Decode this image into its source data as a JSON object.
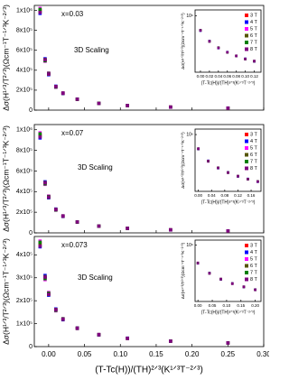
{
  "chart_data": [
    {
      "type": "scatter",
      "annotations": [
        "x=0.03",
        "3D Scaling"
      ],
      "y_label": "Δσ(H¹ᐟ³/T²ᐟ³)(Ωcm⁻¹T⁻¹ᐟ³K⁻²ᐟ³)",
      "x": [
        -0.012,
        -0.005,
        0,
        0.01,
        0.02,
        0.04,
        0.07,
        0.11,
        0.17,
        0.25
      ],
      "series": [
        {
          "color": "#ff0000",
          "values": [
            1000000,
            500000,
            365000,
            234000,
            170000,
            109000,
            68000,
            46000,
            30000,
            20000
          ]
        },
        {
          "color": "#0000ff",
          "values": [
            970000,
            515000,
            355000,
            240000,
            166000,
            111000,
            67000,
            47000,
            29500,
            20500
          ]
        },
        {
          "color": "#ff00ff",
          "values": [
            1020000,
            490000,
            372000,
            229000,
            173000,
            107000,
            69000,
            45500,
            30500,
            19600
          ]
        },
        {
          "color": "#555500",
          "values": [
            990000,
            508000,
            360000,
            237000,
            168000,
            110000,
            67500,
            46500,
            29800,
            20200
          ]
        },
        {
          "color": "#008000",
          "values": [
            1010000,
            495000,
            368000,
            231000,
            171000,
            108000,
            68500,
            45800,
            30200,
            19800
          ]
        },
        {
          "color": "#800080",
          "values": [
            980000,
            505000,
            362000,
            236000,
            169000,
            109500,
            67800,
            46200,
            29900,
            20100
          ]
        }
      ],
      "xlim": [
        -0.02,
        0.3
      ],
      "xticks": [
        0,
        0.05,
        0.1,
        0.15,
        0.2,
        0.25,
        0.3
      ],
      "ylim": [
        0,
        1050000
      ],
      "yticks": [
        0,
        {
          "value": 200000,
          "label": "2x10⁵"
        },
        {
          "value": 400000,
          "label": "4x10⁵"
        },
        {
          "value": 600000,
          "label": "6x10⁵"
        },
        {
          "value": 800000,
          "label": "8x10⁵"
        },
        {
          "value": 1000000,
          "label": "1x10⁶"
        }
      ],
      "inset": {
        "type": "scatter",
        "log_y": true,
        "legend": "upper right",
        "y_label": "Δσ(H¹ᐟ³/T²ᐟ³)(Ωcm⁻¹T⁻¹ᐟ³K⁻²ᐟ³)",
        "x_label": "(T-Tc(H))/(TH)²ᐟ³(K¹ᐟ³T⁻²ᐟ³)",
        "x": [
          0,
          0.02,
          0.04,
          0.06,
          0.08,
          0.1,
          0.12
        ],
        "series": [
          {
            "name": "3 T",
            "color": "#ff0000",
            "values": [
              365000,
              170000,
              109000,
              79400,
              62000,
              50000,
              43000
            ]
          },
          {
            "name": "4 T",
            "color": "#0000ff",
            "values": [
              355000,
              174000,
              106000,
              81000,
              61000,
              51000,
              42000
            ]
          },
          {
            "name": "5 T",
            "color": "#ff00ff",
            "values": [
              372000,
              166000,
              111000,
              78000,
              63000,
              49000,
              43800
            ]
          },
          {
            "name": "6 T",
            "color": "#555500",
            "values": [
              360000,
              172000,
              108000,
              80200,
              61500,
              50500,
              42500
            ]
          },
          {
            "name": "7 T",
            "color": "#008000",
            "values": [
              368000,
              168000,
              110000,
              78800,
              62500,
              49500,
              43400
            ]
          },
          {
            "name": "8 T",
            "color": "#800080",
            "values": [
              362000,
              171000,
              107500,
              79800,
              61800,
              50200,
              42800
            ]
          }
        ],
        "xlim": [
          -0.012,
          0.135
        ],
        "xticks": [
          {
            "value": 0,
            "label": "0.00"
          },
          {
            "value": 0.02,
            "label": "0.02"
          },
          {
            "value": 0.04,
            "label": "0.04"
          },
          {
            "value": 0.06,
            "label": "0.06"
          },
          {
            "value": 0.08,
            "label": "0.08"
          },
          {
            "value": 0.1,
            "label": "0.10"
          },
          {
            "value": 0.12,
            "label": "0.12"
          }
        ],
        "ylim": [
          20000,
          1500000
        ],
        "yticks": [
          {
            "value": 1000000,
            "label": "10⁶"
          }
        ]
      }
    },
    {
      "type": "scatter",
      "annotations": [
        "x=0.07",
        "3D Scaling"
      ],
      "y_label": "Δσ(H¹ᐟ³/T²ᐟ³)(Ωcm⁻¹T⁻¹ᐟ³K⁻²ᐟ³)",
      "x": [
        -0.012,
        -0.005,
        0,
        0.01,
        0.02,
        0.04,
        0.07,
        0.11,
        0.17,
        0.25
      ],
      "series": [
        {
          "color": "#ff0000",
          "values": [
            950000,
            480000,
            350000,
            225000,
            163000,
            105000,
            66000,
            44000,
            29000,
            19000
          ]
        },
        {
          "color": "#0000ff",
          "values": [
            920000,
            495000,
            340000,
            231000,
            159000,
            107000,
            65000,
            45000,
            28500,
            19500
          ]
        },
        {
          "color": "#ff00ff",
          "values": [
            970000,
            470000,
            357000,
            220000,
            166000,
            103000,
            67000,
            43500,
            29500,
            18600
          ]
        },
        {
          "color": "#555500",
          "values": [
            940000,
            488000,
            345000,
            228000,
            161000,
            106000,
            65500,
            44500,
            28800,
            19200
          ]
        },
        {
          "color": "#008000",
          "values": [
            960000,
            475000,
            353000,
            222000,
            164000,
            104000,
            66500,
            43800,
            29200,
            18800
          ]
        },
        {
          "color": "#800080",
          "values": [
            930000,
            485000,
            347000,
            227000,
            162000,
            105500,
            65800,
            44200,
            28900,
            19100
          ]
        }
      ],
      "xlim": [
        -0.02,
        0.3
      ],
      "xticks": [
        0,
        0.05,
        0.1,
        0.15,
        0.2,
        0.25,
        0.3
      ],
      "ylim": [
        0,
        1050000
      ],
      "yticks": [
        0,
        {
          "value": 200000,
          "label": "2x10⁵"
        },
        {
          "value": 400000,
          "label": "4x10⁵"
        },
        {
          "value": 600000,
          "label": "6x10⁵"
        },
        {
          "value": 800000,
          "label": "8x10⁵"
        },
        {
          "value": 1000000,
          "label": "1x10⁶"
        }
      ],
      "inset": {
        "type": "scatter",
        "log_y": true,
        "legend": "upper right",
        "y_label": "Δσ(H¹ᐟ³/T²ᐟ³)(Ωcm⁻¹T⁻¹ᐟ³K⁻²ᐟ³)",
        "x_label": "(T-Tc(H))/(TH)²ᐟ³(K¹ᐟ³T⁻²ᐟ³)",
        "x": [
          0,
          0.03,
          0.06,
          0.09,
          0.12,
          0.15,
          0.18
        ],
        "series": [
          {
            "name": "3 T",
            "color": "#ff0000",
            "values": [
              350000,
              140000,
              85000,
              60000,
              46000,
              37000,
              31000
            ]
          },
          {
            "name": "4 T",
            "color": "#0000ff",
            "values": [
              340000,
              144000,
              83000,
              61500,
              45000,
              37800,
              30400
            ]
          },
          {
            "name": "5 T",
            "color": "#ff00ff",
            "values": [
              358000,
              136000,
              87000,
              58800,
              47000,
              36300,
              31600
            ]
          },
          {
            "name": "6 T",
            "color": "#555500",
            "values": [
              345000,
              142000,
              84000,
              60800,
              45500,
              37400,
              30700
            ]
          },
          {
            "name": "7 T",
            "color": "#008000",
            "values": [
              354000,
              138000,
              86000,
              59300,
              46500,
              36600,
              31300
            ]
          },
          {
            "name": "8 T",
            "color": "#800080",
            "values": [
              348000,
              141000,
              84500,
              60300,
              45800,
              37100,
              30900
            ]
          }
        ],
        "xlim": [
          -0.01,
          0.19
        ],
        "xticks": [
          {
            "value": 0,
            "label": "0.00"
          },
          {
            "value": 0.04,
            "label": "0.04"
          },
          {
            "value": 0.08,
            "label": "0.08"
          },
          {
            "value": 0.12,
            "label": "0.12"
          },
          {
            "value": 0.16,
            "label": "0.16"
          }
        ],
        "ylim": [
          15000,
          1500000
        ],
        "yticks": [
          {
            "value": 1000000,
            "label": "10⁶"
          }
        ]
      }
    },
    {
      "type": "scatter",
      "annotations": [
        "x=0.073",
        "3D Scaling"
      ],
      "y_label": "Δσ(H¹ᐟ³/T²ᐟ³)(Ωcm⁻¹T⁻¹ᐟ³K⁻²ᐟ³)",
      "x_label": "(T-Tc(H))/(TH)²ᐟ³(K¹ᐟ³T⁻²ᐟ³)",
      "x": [
        -0.012,
        -0.005,
        0,
        0.01,
        0.02,
        0.04,
        0.07,
        0.11,
        0.17,
        0.25
      ],
      "series": [
        {
          "color": "#ff0000",
          "values": [
            450000,
            300000,
            230000,
            160000,
            120000,
            80000,
            52000,
            36000,
            24000,
            16000
          ]
        },
        {
          "color": "#0000ff",
          "values": [
            435000,
            310000,
            224000,
            164000,
            117000,
            81500,
            51000,
            36800,
            23600,
            16400
          ]
        },
        {
          "color": "#ff00ff",
          "values": [
            460000,
            292000,
            236000,
            156000,
            122000,
            78800,
            53000,
            35400,
            24400,
            15700
          ]
        },
        {
          "color": "#555500",
          "values": [
            442000,
            305000,
            227000,
            162000,
            118500,
            80800,
            51500,
            36400,
            23800,
            16200
          ]
        },
        {
          "color": "#008000",
          "values": [
            455000,
            296000,
            233000,
            158000,
            121000,
            79300,
            52500,
            35700,
            24200,
            15800
          ]
        },
        {
          "color": "#800080",
          "values": [
            438000,
            303000,
            228000,
            161000,
            119000,
            80300,
            51800,
            36200,
            23900,
            16100
          ]
        }
      ],
      "xlim": [
        -0.02,
        0.3
      ],
      "xticks": [
        {
          "value": 0,
          "label": "0.00"
        },
        {
          "value": 0.05,
          "label": "0.05"
        },
        {
          "value": 0.1,
          "label": "0.10"
        },
        {
          "value": 0.15,
          "label": "0.15"
        },
        {
          "value": 0.2,
          "label": "0.20"
        },
        {
          "value": 0.25,
          "label": "0.25"
        },
        {
          "value": 0.3,
          "label": "0.30"
        }
      ],
      "ylim": [
        0,
        480000
      ],
      "yticks": [
        0,
        {
          "value": 100000,
          "label": "1x10⁵"
        },
        {
          "value": 200000,
          "label": "2x10⁵"
        },
        {
          "value": 300000,
          "label": "3x10⁵"
        },
        {
          "value": 400000,
          "label": "4x10⁵"
        }
      ],
      "inset": {
        "type": "scatter",
        "log_y": true,
        "legend": "upper right",
        "y_label": "Δσ(H¹ᐟ³/T²ᐟ³)(Ωcm⁻¹T⁻¹ᐟ³K⁻²ᐟ³)",
        "x_label": "(T-Tc(H))/(TH)²ᐟ³(K¹ᐟ³T⁻²ᐟ³)",
        "x": [
          0,
          0.04,
          0.08,
          0.12,
          0.16,
          0.2
        ],
        "series": [
          {
            "name": "3 T",
            "color": "#ff0000",
            "values": [
              230000,
              100000,
              62000,
              43000,
              33000,
              26000
            ]
          },
          {
            "name": "4 T",
            "color": "#0000ff",
            "values": [
              224000,
              103000,
              60500,
              44000,
              32300,
              26600
            ]
          },
          {
            "name": "5 T",
            "color": "#ff00ff",
            "values": [
              236000,
              97000,
              63500,
              42000,
              33700,
              25400
            ]
          },
          {
            "name": "6 T",
            "color": "#555500",
            "values": [
              227000,
              101500,
              61200,
              43500,
              32600,
              26300
            ]
          },
          {
            "name": "7 T",
            "color": "#008000",
            "values": [
              233000,
              98500,
              62800,
              42500,
              33400,
              25700
            ]
          },
          {
            "name": "8 T",
            "color": "#800080",
            "values": [
              228000,
              100500,
              61600,
              43200,
              32800,
              26100
            ]
          }
        ],
        "xlim": [
          -0.01,
          0.22
        ],
        "xticks": [
          {
            "value": 0,
            "label": "0.00"
          },
          {
            "value": 0.05,
            "label": "0.05"
          },
          {
            "value": 0.1,
            "label": "0.10"
          },
          {
            "value": 0.15,
            "label": "0.15"
          },
          {
            "value": 0.2,
            "label": "0.20"
          }
        ],
        "ylim": [
          10000,
          1500000
        ],
        "yticks": [
          {
            "value": 1000000,
            "label": "10⁶"
          }
        ]
      }
    }
  ]
}
